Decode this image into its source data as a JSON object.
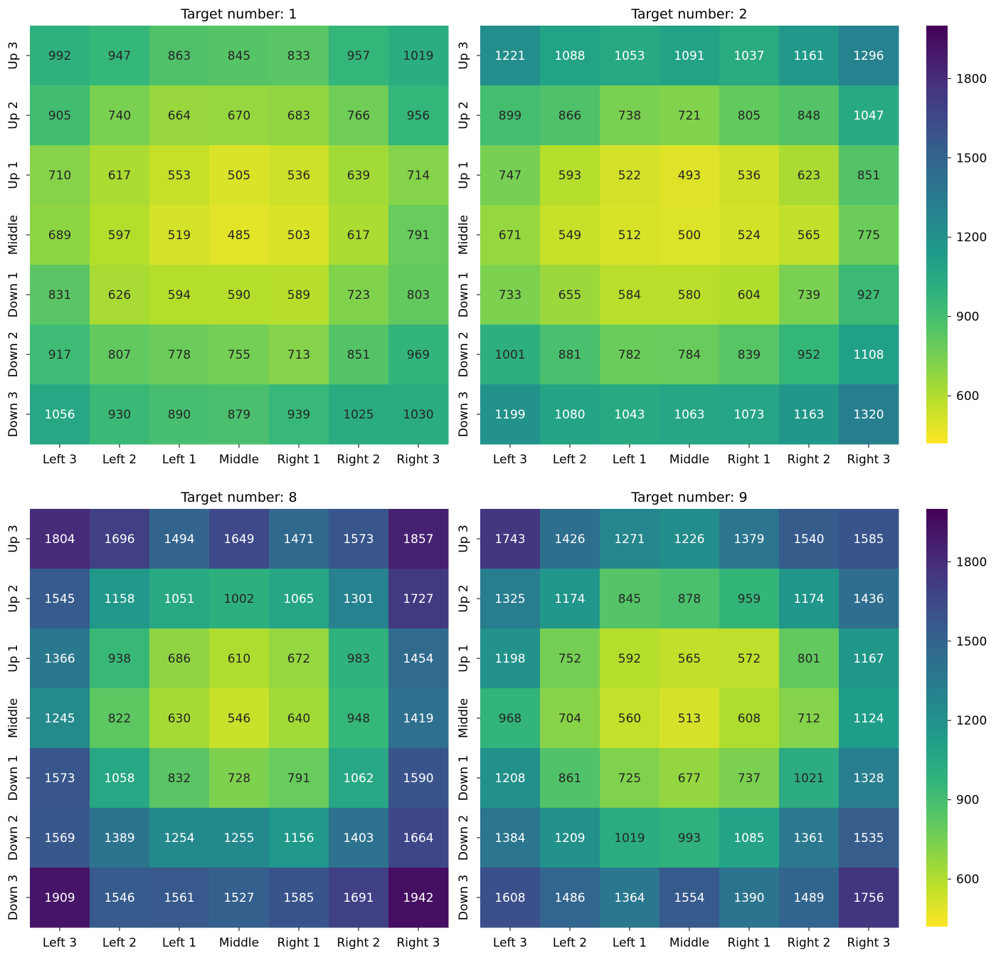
{
  "colorbar": {
    "ticks": [
      600,
      900,
      1200,
      1500,
      1800
    ],
    "vmin": 420,
    "vmax": 2000,
    "colormap": "viridis_r"
  },
  "chart_data": [
    {
      "type": "heatmap",
      "title": "Target number: 1",
      "xticklabels": [
        "Left 3",
        "Left 2",
        "Left 1",
        "Middle",
        "Right 1",
        "Right 2",
        "Right 3"
      ],
      "yticklabels": [
        "Up 3",
        "Up 2",
        "Up 1",
        "Middle",
        "Down 1",
        "Down 2",
        "Down 3"
      ],
      "values": [
        [
          992,
          947,
          863,
          845,
          833,
          957,
          1019
        ],
        [
          905,
          740,
          664,
          670,
          683,
          766,
          956
        ],
        [
          710,
          617,
          553,
          505,
          536,
          639,
          714
        ],
        [
          689,
          597,
          519,
          485,
          503,
          617,
          791
        ],
        [
          831,
          626,
          594,
          590,
          589,
          723,
          803
        ],
        [
          917,
          807,
          778,
          755,
          713,
          851,
          969
        ],
        [
          1056,
          930,
          890,
          879,
          939,
          1025,
          1030
        ]
      ]
    },
    {
      "type": "heatmap",
      "title": "Target number: 2",
      "xticklabels": [
        "Left 3",
        "Left 2",
        "Left 1",
        "Middle",
        "Right 1",
        "Right 2",
        "Right 3"
      ],
      "yticklabels": [
        "Up 3",
        "Up 2",
        "Up 1",
        "Middle",
        "Down 1",
        "Down 2",
        "Down 3"
      ],
      "values": [
        [
          1221,
          1088,
          1053,
          1091,
          1037,
          1161,
          1296
        ],
        [
          899,
          866,
          738,
          721,
          805,
          848,
          1047
        ],
        [
          747,
          593,
          522,
          493,
          536,
          623,
          851
        ],
        [
          671,
          549,
          512,
          500,
          524,
          565,
          775
        ],
        [
          733,
          655,
          584,
          580,
          604,
          739,
          927
        ],
        [
          1001,
          881,
          782,
          784,
          839,
          952,
          1108
        ],
        [
          1199,
          1080,
          1043,
          1063,
          1073,
          1163,
          1320
        ]
      ]
    },
    {
      "type": "heatmap",
      "title": "Target number: 8",
      "xticklabels": [
        "Left 3",
        "Left 2",
        "Left 1",
        "Middle",
        "Right 1",
        "Right 2",
        "Right 3"
      ],
      "yticklabels": [
        "Up 3",
        "Up 2",
        "Up 1",
        "Middle",
        "Down 1",
        "Down 2",
        "Down 3"
      ],
      "values": [
        [
          1804,
          1696,
          1494,
          1649,
          1471,
          1573,
          1857
        ],
        [
          1545,
          1158,
          1051,
          1002,
          1065,
          1301,
          1727
        ],
        [
          1366,
          938,
          686,
          610,
          672,
          983,
          1454
        ],
        [
          1245,
          822,
          630,
          546,
          640,
          948,
          1419
        ],
        [
          1573,
          1058,
          832,
          728,
          791,
          1062,
          1590
        ],
        [
          1569,
          1389,
          1254,
          1255,
          1156,
          1403,
          1664
        ],
        [
          1909,
          1546,
          1561,
          1527,
          1585,
          1691,
          1942
        ]
      ]
    },
    {
      "type": "heatmap",
      "title": "Target number: 9",
      "xticklabels": [
        "Left 3",
        "Left 2",
        "Left 1",
        "Middle",
        "Right 1",
        "Right 2",
        "Right 3"
      ],
      "yticklabels": [
        "Up 3",
        "Up 2",
        "Up 1",
        "Middle",
        "Down 1",
        "Down 2",
        "Down 3"
      ],
      "values": [
        [
          1743,
          1426,
          1271,
          1226,
          1379,
          1540,
          1585
        ],
        [
          1325,
          1174,
          845,
          878,
          959,
          1174,
          1436
        ],
        [
          1198,
          752,
          592,
          565,
          572,
          801,
          1167
        ],
        [
          968,
          704,
          560,
          513,
          608,
          712,
          1124
        ],
        [
          1208,
          861,
          725,
          677,
          737,
          1021,
          1328
        ],
        [
          1384,
          1209,
          1019,
          993,
          1085,
          1361,
          1535
        ],
        [
          1608,
          1486,
          1364,
          1554,
          1390,
          1489,
          1756
        ]
      ]
    }
  ]
}
